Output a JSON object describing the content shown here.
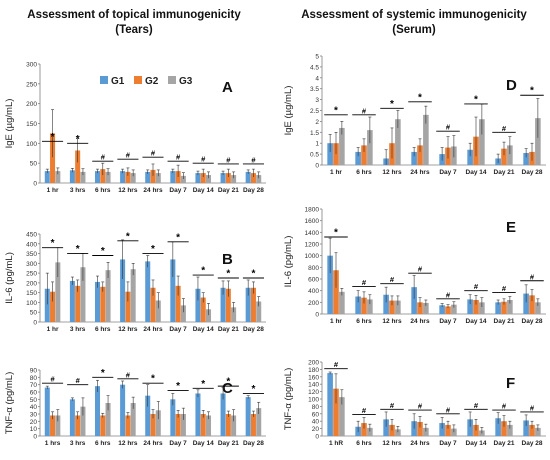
{
  "headers": {
    "left": [
      "Assessment of topical immunogenicity",
      "(Tears)"
    ],
    "right": [
      "Assessment of systemic immunogenicity",
      "(Serum)"
    ]
  },
  "legend": [
    "G1",
    "G2",
    "G3"
  ],
  "colors": {
    "G1": "#5B9BD5",
    "G2": "#ED7D31",
    "G3": "#A5A5A5",
    "axis": "#808080",
    "sig": "#000000"
  },
  "chart_data": [
    {
      "id": "A",
      "type": "bar",
      "letter": "A",
      "ylabel": "IgE (µg/mL)",
      "ylim": [
        0,
        300
      ],
      "yticks": [
        0,
        50,
        100,
        150,
        200,
        250,
        300
      ],
      "categories": [
        "1 hr",
        "3 hrs",
        "6 hrs",
        "12 hrs",
        "24 hrs",
        "Day 7",
        "Day 14",
        "Day 21",
        "Day 28"
      ],
      "series": [
        {
          "name": "G1",
          "values": [
            30,
            32,
            30,
            30,
            28,
            30,
            25,
            25,
            28
          ],
          "errors": [
            5,
            5,
            5,
            5,
            5,
            5,
            5,
            5,
            5
          ]
        },
        {
          "name": "G2",
          "values": [
            125,
            82,
            35,
            28,
            33,
            30,
            25,
            25,
            25
          ],
          "errors": [
            60,
            30,
            15,
            10,
            15,
            15,
            10,
            10,
            10
          ]
        },
        {
          "name": "G3",
          "values": [
            30,
            28,
            28,
            25,
            25,
            18,
            20,
            20,
            20
          ],
          "errors": [
            8,
            8,
            8,
            8,
            8,
            8,
            8,
            8,
            8
          ]
        }
      ],
      "annotations": [
        {
          "index": 0,
          "mark": "*",
          "y": 105
        },
        {
          "index": 1,
          "mark": "*",
          "y": 100
        },
        {
          "index": 2,
          "mark": "#",
          "y": 55
        },
        {
          "index": 3,
          "mark": "#",
          "y": 60
        },
        {
          "index": 4,
          "mark": "#",
          "y": 65
        },
        {
          "index": 5,
          "mark": "#",
          "y": 55
        },
        {
          "index": 6,
          "mark": "#",
          "y": 50
        },
        {
          "index": 7,
          "mark": "#",
          "y": 48
        },
        {
          "index": 8,
          "mark": "#",
          "y": 48
        }
      ]
    },
    {
      "id": "B",
      "type": "bar",
      "letter": "B",
      "ylabel": "IL-6 (pg/mL)",
      "ylim": [
        0,
        450
      ],
      "yticks": [
        0,
        50,
        100,
        150,
        200,
        250,
        300,
        350,
        400,
        450
      ],
      "categories": [
        "1 hr",
        "3 hrs",
        "6 hrs",
        "12 hrs",
        "24 hrs",
        "Day 7",
        "Day 14",
        "Day 21",
        "Day 28"
      ],
      "series": [
        {
          "name": "G1",
          "values": [
            170,
            210,
            205,
            320,
            310,
            320,
            170,
            175,
            175
          ],
          "errors": [
            80,
            20,
            30,
            100,
            30,
            90,
            60,
            35,
            40
          ]
        },
        {
          "name": "G2",
          "values": [
            155,
            185,
            180,
            155,
            175,
            185,
            125,
            170,
            175
          ],
          "errors": [
            50,
            30,
            25,
            50,
            40,
            50,
            25,
            40,
            30
          ]
        },
        {
          "name": "G3",
          "values": [
            305,
            280,
            265,
            270,
            110,
            85,
            65,
            75,
            105
          ],
          "errors": [
            75,
            70,
            40,
            30,
            40,
            35,
            30,
            25,
            25
          ]
        }
      ],
      "annotations": [
        {
          "index": 0,
          "mark": "*",
          "y": 380
        },
        {
          "index": 1,
          "mark": "*",
          "y": 350
        },
        {
          "index": 2,
          "mark": "*",
          "y": 340
        },
        {
          "index": 3,
          "mark": "*",
          "y": 415
        },
        {
          "index": 4,
          "mark": "*",
          "y": 350
        },
        {
          "index": 5,
          "mark": "*",
          "y": 410
        },
        {
          "index": 6,
          "mark": "*",
          "y": 240
        },
        {
          "index": 7,
          "mark": "*",
          "y": 225
        },
        {
          "index": 8,
          "mark": "*",
          "y": 225
        }
      ]
    },
    {
      "id": "C",
      "type": "bar",
      "letter": "C",
      "ylabel": "TNF-α (pg/mL)",
      "ylim": [
        0,
        90
      ],
      "yticks": [
        0,
        10,
        20,
        30,
        40,
        50,
        60,
        70,
        80,
        90
      ],
      "categories": [
        "1 hrs",
        "3 hrs",
        "6 hrs",
        "12 hrs",
        "24 hrs",
        "Day 7",
        "Day 14",
        "Day 21",
        "Day 28"
      ],
      "series": [
        {
          "name": "G1",
          "values": [
            66,
            50,
            68,
            70,
            55,
            50,
            58,
            58,
            53
          ],
          "errors": [
            2,
            2,
            8,
            5,
            15,
            8,
            5,
            8,
            2
          ]
        },
        {
          "name": "G2",
          "values": [
            28,
            28,
            28,
            28,
            30,
            30,
            30,
            30,
            30
          ],
          "errors": [
            5,
            5,
            3,
            4,
            6,
            5,
            5,
            4,
            4
          ]
        },
        {
          "name": "G3",
          "values": [
            28,
            40,
            45,
            45,
            35,
            30,
            28,
            28,
            38
          ],
          "errors": [
            8,
            12,
            10,
            8,
            12,
            8,
            5,
            8,
            8
          ]
        }
      ],
      "annotations": [
        {
          "index": 0,
          "mark": "#",
          "y": 72
        },
        {
          "index": 1,
          "mark": "#",
          "y": 70
        },
        {
          "index": 2,
          "mark": "*",
          "y": 80
        },
        {
          "index": 3,
          "mark": "#",
          "y": 78
        },
        {
          "index": 4,
          "mark": "*",
          "y": 72
        },
        {
          "index": 5,
          "mark": "*",
          "y": 62
        },
        {
          "index": 6,
          "mark": "*",
          "y": 65
        },
        {
          "index": 7,
          "mark": "*",
          "y": 68
        },
        {
          "index": 8,
          "mark": "*",
          "y": 58
        }
      ]
    },
    {
      "id": "D",
      "type": "bar",
      "letter": "D",
      "ylabel": "IgE (µg/mL)",
      "ylim": [
        0,
        5
      ],
      "yticks": [
        0,
        0.5,
        1,
        1.5,
        2,
        2.5,
        3,
        3.5,
        4,
        4.5,
        5
      ],
      "categories": [
        "1 hr",
        "6 hrs",
        "12 hrs",
        "24 hrs",
        "Day 7",
        "Day 14",
        "Day 21",
        "Day 28"
      ],
      "series": [
        {
          "name": "G1",
          "values": [
            1.0,
            0.6,
            0.3,
            0.6,
            0.5,
            0.7,
            0.3,
            0.55
          ],
          "errors": [
            0.4,
            0.2,
            0.4,
            0.2,
            0.3,
            0.3,
            0.2,
            0.2
          ]
        },
        {
          "name": "G2",
          "values": [
            1.0,
            0.9,
            1.0,
            0.9,
            0.8,
            1.3,
            0.75,
            0.6
          ],
          "errors": [
            0.5,
            0.3,
            0.7,
            0.3,
            0.5,
            0.9,
            0.3,
            0.4
          ]
        },
        {
          "name": "G3",
          "values": [
            1.7,
            1.6,
            2.1,
            2.3,
            0.85,
            2.1,
            0.9,
            2.15
          ],
          "errors": [
            0.3,
            0.6,
            0.4,
            0.4,
            0.5,
            0.7,
            0.4,
            0.9
          ]
        }
      ],
      "annotations": [
        {
          "index": 0,
          "mark": "*",
          "y": 2.3
        },
        {
          "index": 1,
          "mark": "#",
          "y": 2.3
        },
        {
          "index": 2,
          "mark": "*",
          "y": 2.6
        },
        {
          "index": 3,
          "mark": "*",
          "y": 2.9
        },
        {
          "index": 4,
          "mark": "#",
          "y": 1.55
        },
        {
          "index": 5,
          "mark": "*",
          "y": 2.8
        },
        {
          "index": 6,
          "mark": "#",
          "y": 1.5
        },
        {
          "index": 7,
          "mark": "*",
          "y": 3.2
        }
      ]
    },
    {
      "id": "E",
      "type": "bar",
      "letter": "E",
      "ylabel": "IL-6 (pg/mL)",
      "ylim": [
        0,
        1800
      ],
      "yticks": [
        0,
        200,
        400,
        600,
        800,
        1000,
        1200,
        1400,
        1600,
        1800
      ],
      "categories": [
        "1 hr",
        "6 hrs",
        "12 hrs",
        "24 hrs",
        "Day 7",
        "Day 14",
        "Day 21",
        "Day 28"
      ],
      "series": [
        {
          "name": "G1",
          "values": [
            1000,
            300,
            330,
            460,
            150,
            250,
            200,
            350
          ],
          "errors": [
            300,
            100,
            130,
            200,
            30,
            80,
            40,
            150
          ]
        },
        {
          "name": "G2",
          "values": [
            750,
            280,
            230,
            200,
            130,
            240,
            210,
            320
          ],
          "errors": [
            300,
            100,
            80,
            80,
            30,
            80,
            50,
            100
          ]
        },
        {
          "name": "G3",
          "values": [
            380,
            250,
            230,
            190,
            160,
            200,
            240,
            200
          ],
          "errors": [
            60,
            80,
            80,
            50,
            50,
            80,
            60,
            60
          ]
        }
      ],
      "annotations": [
        {
          "index": 0,
          "mark": "*",
          "y": 1320
        },
        {
          "index": 1,
          "mark": "#",
          "y": 470
        },
        {
          "index": 2,
          "mark": "#",
          "y": 520
        },
        {
          "index": 3,
          "mark": "#",
          "y": 700
        },
        {
          "index": 4,
          "mark": "#",
          "y": 260
        },
        {
          "index": 5,
          "mark": "#",
          "y": 400
        },
        {
          "index": 6,
          "mark": "#",
          "y": 370
        },
        {
          "index": 7,
          "mark": "#",
          "y": 570
        }
      ]
    },
    {
      "id": "F",
      "type": "bar",
      "letter": "F",
      "ylabel": "TNF-α (pg/mL)",
      "ylim": [
        0,
        200
      ],
      "yticks": [
        0,
        20,
        40,
        60,
        80,
        100,
        120,
        140,
        160,
        180,
        200
      ],
      "categories": [
        "1 hR",
        "6 hrs",
        "12 hrs",
        "24 hrs",
        "Day 7",
        "Day 14",
        "Day 21",
        "Day 28"
      ],
      "series": [
        {
          "name": "G1",
          "values": [
            170,
            25,
            45,
            40,
            35,
            45,
            48,
            42
          ],
          "errors": [
            3,
            15,
            20,
            20,
            15,
            20,
            15,
            15
          ]
        },
        {
          "name": "G2",
          "values": [
            128,
            35,
            30,
            38,
            30,
            30,
            40,
            30
          ],
          "errors": [
            40,
            15,
            15,
            15,
            10,
            15,
            15,
            10
          ]
        },
        {
          "name": "G3",
          "values": [
            105,
            22,
            18,
            22,
            20,
            15,
            30,
            22
          ],
          "errors": [
            20,
            10,
            8,
            10,
            10,
            8,
            10,
            8
          ]
        }
      ],
      "annotations": [
        {
          "index": 0,
          "mark": "#",
          "y": 182
        },
        {
          "index": 1,
          "mark": "#",
          "y": 58
        },
        {
          "index": 2,
          "mark": "#",
          "y": 72
        },
        {
          "index": 3,
          "mark": "#",
          "y": 70
        },
        {
          "index": 4,
          "mark": "#",
          "y": 60
        },
        {
          "index": 5,
          "mark": "#",
          "y": 72
        },
        {
          "index": 6,
          "mark": "#",
          "y": 70
        },
        {
          "index": 7,
          "mark": "#",
          "y": 65
        }
      ]
    }
  ]
}
